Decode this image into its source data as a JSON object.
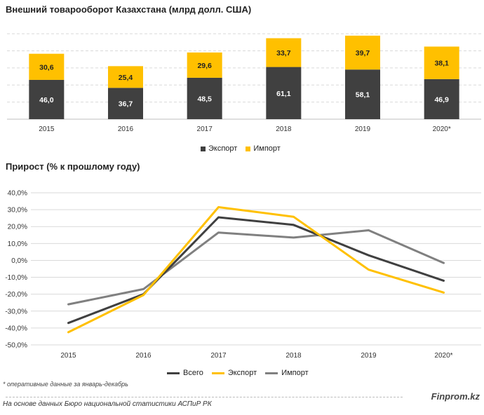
{
  "chart_data": [
    {
      "type": "bar",
      "stacked": true,
      "title": "Внешний товарооборот Казахстана (млрд долл. США)",
      "categories": [
        "2015",
        "2016",
        "2017",
        "2018",
        "2019",
        "2020*"
      ],
      "series": [
        {
          "name": "Экспорт",
          "values": [
            46.0,
            36.7,
            48.5,
            61.1,
            58.1,
            46.9
          ],
          "labels": [
            "46,0",
            "36,7",
            "48,5",
            "61,1",
            "58,1",
            "46,9"
          ],
          "color": "#404040"
        },
        {
          "name": "Импорт",
          "values": [
            30.6,
            25.4,
            29.6,
            33.7,
            39.7,
            38.1
          ],
          "labels": [
            "30,6",
            "25,4",
            "29,6",
            "33,7",
            "39,7",
            "38,1"
          ],
          "color": "#ffc000"
        }
      ],
      "ylim": [
        0,
        110
      ],
      "grid": true,
      "legend": "bottom"
    },
    {
      "type": "line",
      "title": "Прирост (% к прошлому году)",
      "categories": [
        "2015",
        "2016",
        "2017",
        "2018",
        "2019",
        "2020*"
      ],
      "series": [
        {
          "name": "Всего",
          "values": [
            -37,
            -20,
            25.5,
            21,
            3,
            -12
          ],
          "color": "#404040"
        },
        {
          "name": "Экспорт",
          "values": [
            -42.5,
            -20.5,
            31.5,
            25.8,
            -5.5,
            -19
          ],
          "color": "#ffc000"
        },
        {
          "name": "Импорт",
          "values": [
            -26,
            -17,
            16.5,
            13.5,
            17.8,
            -1.5
          ],
          "color": "#808080"
        }
      ],
      "ylim": [
        -50,
        40
      ],
      "yticks": [
        "-50,0%",
        "-40,0%",
        "-30,0%",
        "-20,0%",
        "-10,0%",
        "0,0%",
        "10,0%",
        "20,0%",
        "30,0%",
        "40,0%"
      ],
      "grid": true,
      "legend": "bottom"
    }
  ],
  "footnote": "* оперативные данные за январь-декабрь",
  "source": "На основе данных Бюро национальной статистики АСПиР РК",
  "brand": "Finprom.kz"
}
